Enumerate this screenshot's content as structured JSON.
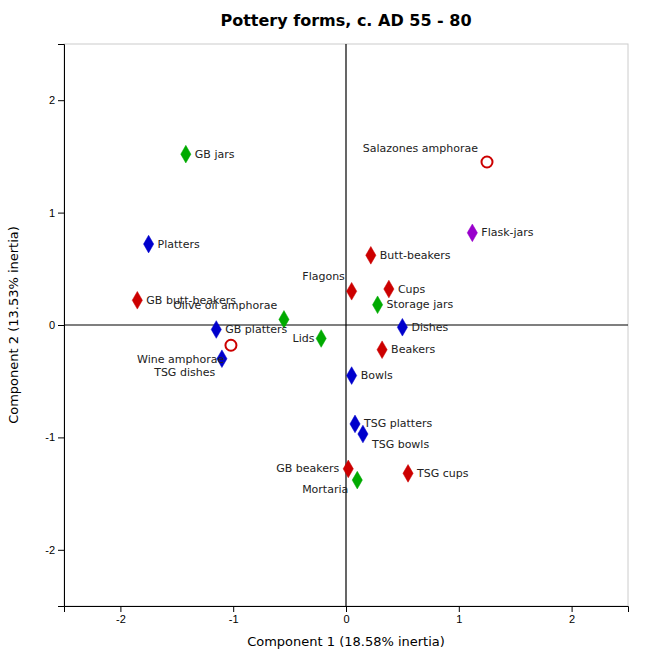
{
  "chart_data": {
    "type": "scatter",
    "title": "Pottery forms, c. AD 55 - 80",
    "x_label": "Component 1 (18.58% inertia)",
    "y_label": "Component 2 (13.53% inertia)",
    "xlim": [
      -2.5,
      2.5
    ],
    "ylim": [
      -2.5,
      2.5
    ],
    "xticks": [
      -2,
      -1,
      0,
      1,
      2
    ],
    "yticks": [
      -2,
      -1,
      0,
      1,
      2
    ],
    "grid": false,
    "series": [
      {
        "marker": "diamond",
        "labels": [
          "GB jars",
          "Platters",
          "GB butt-beakers",
          "GB platters",
          "TSG dishes",
          "Olive oil amphorae",
          "Lids",
          "Flagons",
          "Butt-beakers",
          "Cups",
          "Storage jars",
          "Dishes",
          "Beakers",
          "Bowls",
          "TSG platters",
          "TSG bowls",
          "GB beakers",
          "Mortaria",
          "TSG cups",
          "Flask-jars"
        ],
        "x": [
          -1.42,
          -1.75,
          -1.85,
          -1.15,
          -1.1,
          -0.55,
          -0.22,
          0.05,
          0.22,
          0.38,
          0.28,
          0.5,
          0.32,
          0.05,
          0.08,
          0.15,
          0.02,
          0.1,
          0.55,
          1.12
        ],
        "values": [
          1.52,
          0.72,
          0.22,
          -0.04,
          -0.3,
          0.05,
          -0.12,
          0.3,
          0.62,
          0.32,
          0.18,
          -0.02,
          -0.22,
          -0.45,
          -0.88,
          -0.97,
          -1.28,
          -1.38,
          -1.32,
          0.82
        ],
        "colors": [
          "#00aa00",
          "#0000cc",
          "#cc0000",
          "#0000cc",
          "#0000cc",
          "#00aa00",
          "#00aa00",
          "#cc0000",
          "#cc0000",
          "#cc0000",
          "#00aa00",
          "#0000cc",
          "#cc0000",
          "#0000cc",
          "#0000cc",
          "#0000cc",
          "#cc0000",
          "#00aa00",
          "#cc0000",
          "#9900cc"
        ]
      },
      {
        "marker": "open-circle",
        "labels": [
          "Wine amphorae",
          "Salazones amphorae"
        ],
        "x": [
          -1.02,
          1.25
        ],
        "values": [
          -0.18,
          1.45
        ],
        "colors": [
          "#cc0000",
          "#cc0000"
        ]
      }
    ]
  }
}
